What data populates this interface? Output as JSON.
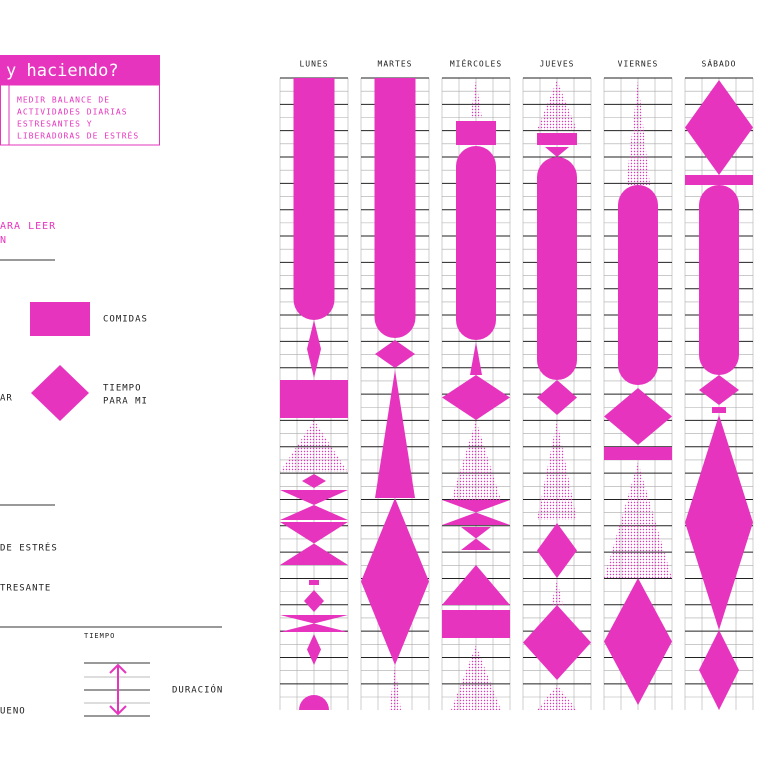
{
  "header": {
    "title": "y haciendo?",
    "description": [
      "MEDIR BALANCE DE",
      "ACTIVIDADES DIARIAS",
      "ESTRESANTES Y",
      "LIBERADORAS DE ESTRÉS"
    ]
  },
  "guide": {
    "heading": [
      "ARA LEER",
      "N"
    ]
  },
  "legend": {
    "items": [
      {
        "label": [
          "COMIDAS"
        ]
      },
      {
        "label": [
          "TIEMPO",
          "PARA MI"
        ]
      },
      {
        "label": [
          "AR"
        ]
      }
    ],
    "stress": [
      "DE ESTRÉS",
      "TRESANTE"
    ],
    "time": {
      "axis": "TIEMPO",
      "duration": "DURACIÓN",
      "sleep": "UENO"
    }
  },
  "days": [
    "LUNES",
    "MARTES",
    "MIÉRCOLES",
    "JUEVES",
    "VIERNES",
    "SÁBADO"
  ]
}
